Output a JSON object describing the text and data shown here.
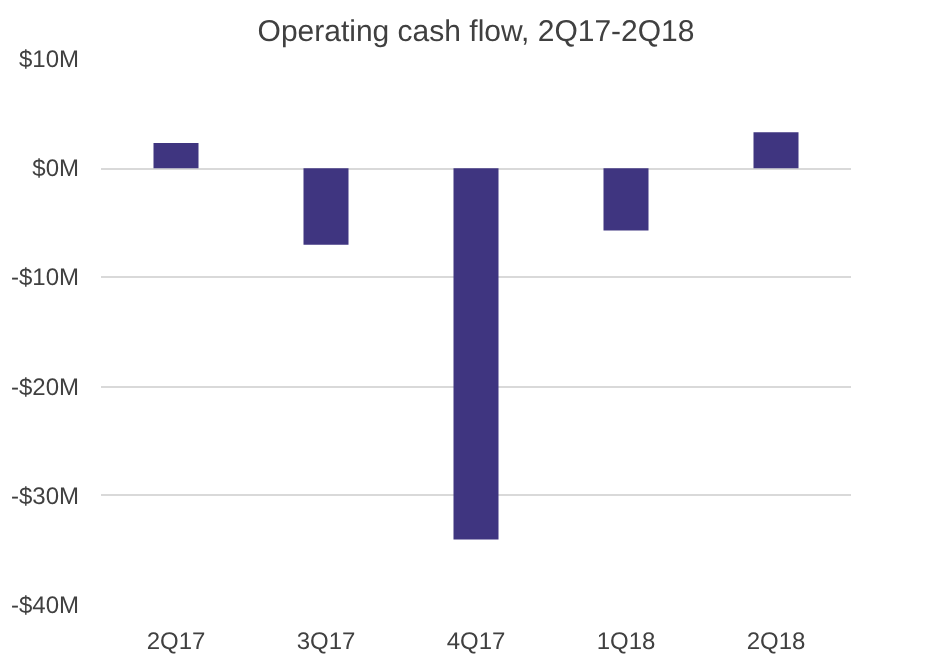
{
  "chart_data": {
    "type": "bar",
    "title": "Operating cash flow, 2Q17-2Q18",
    "categories": [
      "2Q17",
      "3Q17",
      "4Q17",
      "1Q18",
      "2Q18"
    ],
    "values": [
      2.3,
      -7,
      -34,
      -5.7,
      3.3
    ],
    "color": "#3f3580",
    "ylim": [
      -40,
      10
    ],
    "yticks": [
      {
        "value": -40,
        "label": "-$40M"
      },
      {
        "value": -30,
        "label": "-$30M"
      },
      {
        "value": -20,
        "label": "-$20M"
      },
      {
        "value": -10,
        "label": "-$10M"
      },
      {
        "value": 0,
        "label": "$0M"
      },
      {
        "value": 10,
        "label": "$10M"
      }
    ],
    "grid": "y"
  }
}
